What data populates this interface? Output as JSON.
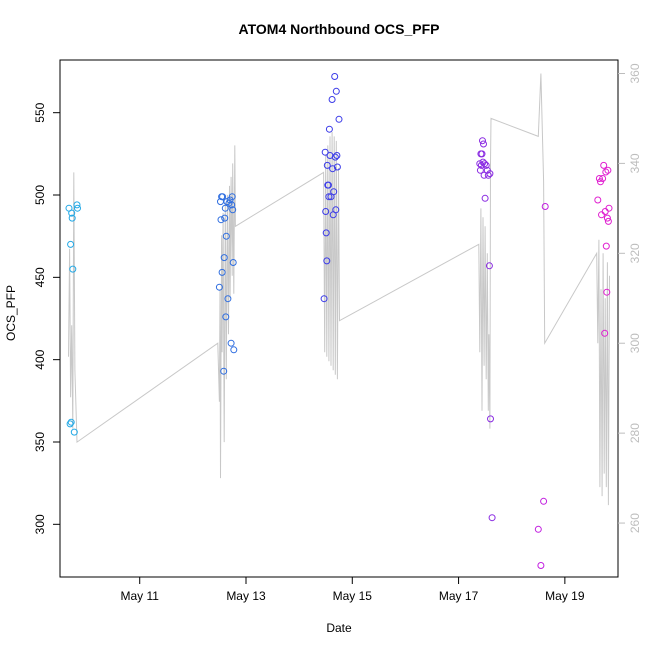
{
  "chart_data": {
    "type": "scatter",
    "title": "ATOM4 Northbound OCS_PFP",
    "xlabel": "Date",
    "ylabel": "OCS_PFP",
    "x_ticks": [
      "May 11",
      "May 13",
      "May 15",
      "May 17",
      "May 19"
    ],
    "x_tick_pos": [
      11,
      13,
      15,
      17,
      19
    ],
    "xlim": [
      9.5,
      20.0
    ],
    "ylim": [
      268,
      582
    ],
    "y_ticks": [
      300,
      350,
      400,
      450,
      500,
      550
    ],
    "y2lim": [
      248,
      363
    ],
    "y2_ticks": [
      260,
      280,
      300,
      320,
      340,
      360
    ],
    "colors": {
      "line": "#c8c8c8",
      "right_axis": "#bdbdbd"
    },
    "points": [
      {
        "x": 9.67,
        "y": 492,
        "c": "#23a9e6"
      },
      {
        "x": 9.7,
        "y": 470,
        "c": "#23a9e6"
      },
      {
        "x": 9.72,
        "y": 489,
        "c": "#23a9e6"
      },
      {
        "x": 9.73,
        "y": 486,
        "c": "#23a9e6"
      },
      {
        "x": 9.74,
        "y": 455,
        "c": "#23a9e6"
      },
      {
        "x": 9.69,
        "y": 361,
        "c": "#23a9e6"
      },
      {
        "x": 9.71,
        "y": 362,
        "c": "#23a9e6"
      },
      {
        "x": 9.77,
        "y": 356,
        "c": "#23a9e6"
      },
      {
        "x": 9.82,
        "y": 494,
        "c": "#23a9e6"
      },
      {
        "x": 9.83,
        "y": 492,
        "c": "#23a9e6"
      },
      {
        "x": 12.5,
        "y": 444,
        "c": "#2f6ee0"
      },
      {
        "x": 12.52,
        "y": 496,
        "c": "#2f6ee0"
      },
      {
        "x": 12.53,
        "y": 485,
        "c": "#2f6ee0"
      },
      {
        "x": 12.54,
        "y": 499,
        "c": "#2f6ee0"
      },
      {
        "x": 12.55,
        "y": 453,
        "c": "#2f6ee0"
      },
      {
        "x": 12.56,
        "y": 499,
        "c": "#2f6ee0"
      },
      {
        "x": 12.58,
        "y": 393,
        "c": "#2f6ee0"
      },
      {
        "x": 12.59,
        "y": 462,
        "c": "#2f6ee0"
      },
      {
        "x": 12.6,
        "y": 486,
        "c": "#2f6ee0"
      },
      {
        "x": 12.61,
        "y": 492,
        "c": "#2f6ee0"
      },
      {
        "x": 12.62,
        "y": 426,
        "c": "#2f6ee0"
      },
      {
        "x": 12.63,
        "y": 475,
        "c": "#2f6ee0"
      },
      {
        "x": 12.64,
        "y": 496,
        "c": "#2f6ee0"
      },
      {
        "x": 12.66,
        "y": 437,
        "c": "#2f6ee0"
      },
      {
        "x": 12.68,
        "y": 495,
        "c": "#2f6ee0"
      },
      {
        "x": 12.7,
        "y": 497,
        "c": "#2f6ee0"
      },
      {
        "x": 12.72,
        "y": 410,
        "c": "#2f6ee0"
      },
      {
        "x": 12.73,
        "y": 494,
        "c": "#2f6ee0"
      },
      {
        "x": 12.74,
        "y": 499,
        "c": "#2f6ee0"
      },
      {
        "x": 12.75,
        "y": 491,
        "c": "#2f6ee0"
      },
      {
        "x": 12.76,
        "y": 459,
        "c": "#2f6ee0"
      },
      {
        "x": 12.77,
        "y": 406,
        "c": "#2f6ee0"
      },
      {
        "x": 14.47,
        "y": 437,
        "c": "#3b3be8"
      },
      {
        "x": 14.49,
        "y": 526,
        "c": "#3b3be8"
      },
      {
        "x": 14.5,
        "y": 490,
        "c": "#3b3be8"
      },
      {
        "x": 14.51,
        "y": 477,
        "c": "#3b3be8"
      },
      {
        "x": 14.52,
        "y": 460,
        "c": "#3b3be8"
      },
      {
        "x": 14.53,
        "y": 518,
        "c": "#3b3be8"
      },
      {
        "x": 14.54,
        "y": 506,
        "c": "#3b3be8"
      },
      {
        "x": 14.55,
        "y": 506,
        "c": "#3b3be8"
      },
      {
        "x": 14.56,
        "y": 499,
        "c": "#3b3be8"
      },
      {
        "x": 14.57,
        "y": 540,
        "c": "#3b3be8"
      },
      {
        "x": 14.58,
        "y": 524,
        "c": "#3b3be8"
      },
      {
        "x": 14.6,
        "y": 499,
        "c": "#3b3be8"
      },
      {
        "x": 14.62,
        "y": 558,
        "c": "#3b3be8"
      },
      {
        "x": 14.63,
        "y": 516,
        "c": "#3b3be8"
      },
      {
        "x": 14.64,
        "y": 488,
        "c": "#3b3be8"
      },
      {
        "x": 14.65,
        "y": 502,
        "c": "#3b3be8"
      },
      {
        "x": 14.67,
        "y": 572,
        "c": "#3b3be8"
      },
      {
        "x": 14.68,
        "y": 523,
        "c": "#3b3be8"
      },
      {
        "x": 14.69,
        "y": 491,
        "c": "#3b3be8"
      },
      {
        "x": 14.7,
        "y": 563,
        "c": "#3b3be8"
      },
      {
        "x": 14.71,
        "y": 524,
        "c": "#3b3be8"
      },
      {
        "x": 14.72,
        "y": 517,
        "c": "#3b3be8"
      },
      {
        "x": 14.75,
        "y": 546,
        "c": "#3b3be8"
      },
      {
        "x": 17.4,
        "y": 519,
        "c": "#8a2be2"
      },
      {
        "x": 17.41,
        "y": 515,
        "c": "#8a2be2"
      },
      {
        "x": 17.42,
        "y": 525,
        "c": "#8a2be2"
      },
      {
        "x": 17.43,
        "y": 518,
        "c": "#8a2be2"
      },
      {
        "x": 17.44,
        "y": 525,
        "c": "#8a2be2"
      },
      {
        "x": 17.45,
        "y": 533,
        "c": "#8a2be2"
      },
      {
        "x": 17.46,
        "y": 520,
        "c": "#8a2be2"
      },
      {
        "x": 17.47,
        "y": 531,
        "c": "#8a2be2"
      },
      {
        "x": 17.48,
        "y": 512,
        "c": "#8a2be2"
      },
      {
        "x": 17.49,
        "y": 519,
        "c": "#8a2be2"
      },
      {
        "x": 17.5,
        "y": 498,
        "c": "#8a2be2"
      },
      {
        "x": 17.52,
        "y": 518,
        "c": "#8a2be2"
      },
      {
        "x": 17.54,
        "y": 515,
        "c": "#8a2be2"
      },
      {
        "x": 17.56,
        "y": 512,
        "c": "#8a2be2"
      },
      {
        "x": 17.58,
        "y": 457,
        "c": "#8a2be2"
      },
      {
        "x": 17.59,
        "y": 513,
        "c": "#8a2be2"
      },
      {
        "x": 17.6,
        "y": 364,
        "c": "#8a2be2"
      },
      {
        "x": 17.63,
        "y": 304,
        "c": "#8a2be2"
      },
      {
        "x": 18.5,
        "y": 297,
        "c": "#c21fe0"
      },
      {
        "x": 18.55,
        "y": 275,
        "c": "#c21fe0"
      },
      {
        "x": 18.6,
        "y": 314,
        "c": "#c21fe0"
      },
      {
        "x": 18.63,
        "y": 493,
        "c": "#c21fe0"
      },
      {
        "x": 19.62,
        "y": 497,
        "c": "#e020d0"
      },
      {
        "x": 19.65,
        "y": 510,
        "c": "#e020d0"
      },
      {
        "x": 19.67,
        "y": 508,
        "c": "#e020d0"
      },
      {
        "x": 19.69,
        "y": 488,
        "c": "#e020d0"
      },
      {
        "x": 19.71,
        "y": 510,
        "c": "#e020d0"
      },
      {
        "x": 19.73,
        "y": 518,
        "c": "#e020d0"
      },
      {
        "x": 19.75,
        "y": 416,
        "c": "#e020d0"
      },
      {
        "x": 19.76,
        "y": 490,
        "c": "#e020d0"
      },
      {
        "x": 19.77,
        "y": 514,
        "c": "#e020d0"
      },
      {
        "x": 19.78,
        "y": 469,
        "c": "#e020d0"
      },
      {
        "x": 19.79,
        "y": 441,
        "c": "#e020d0"
      },
      {
        "x": 19.8,
        "y": 486,
        "c": "#e020d0"
      },
      {
        "x": 19.81,
        "y": 515,
        "c": "#e020d0"
      },
      {
        "x": 19.82,
        "y": 484,
        "c": "#e020d0"
      },
      {
        "x": 19.83,
        "y": 492,
        "c": "#e020d0"
      }
    ],
    "line": [
      [
        9.66,
        297
      ],
      [
        9.68,
        321
      ],
      [
        9.7,
        288
      ],
      [
        9.72,
        304
      ],
      [
        9.74,
        281
      ],
      [
        9.76,
        338
      ],
      [
        9.78,
        294
      ],
      [
        9.82,
        278
      ],
      [
        12.47,
        300
      ],
      [
        12.5,
        287
      ],
      [
        12.51,
        312
      ],
      [
        12.52,
        270
      ],
      [
        12.54,
        324
      ],
      [
        12.55,
        298
      ],
      [
        12.57,
        329
      ],
      [
        12.59,
        278
      ],
      [
        12.61,
        331
      ],
      [
        12.63,
        292
      ],
      [
        12.65,
        333
      ],
      [
        12.67,
        302
      ],
      [
        12.69,
        335
      ],
      [
        12.7,
        310
      ],
      [
        12.72,
        337
      ],
      [
        12.74,
        315
      ],
      [
        12.75,
        340
      ],
      [
        12.77,
        311
      ],
      [
        12.79,
        344
      ],
      [
        12.8,
        326
      ],
      [
        14.46,
        338
      ],
      [
        14.48,
        298
      ],
      [
        14.5,
        342
      ],
      [
        14.52,
        297
      ],
      [
        14.54,
        344
      ],
      [
        14.56,
        296
      ],
      [
        14.58,
        346
      ],
      [
        14.6,
        295
      ],
      [
        14.62,
        347
      ],
      [
        14.64,
        294
      ],
      [
        14.66,
        346
      ],
      [
        14.68,
        293
      ],
      [
        14.7,
        345
      ],
      [
        14.72,
        292
      ],
      [
        14.74,
        339
      ],
      [
        14.76,
        305
      ],
      [
        17.38,
        322
      ],
      [
        17.4,
        298
      ],
      [
        17.42,
        330
      ],
      [
        17.44,
        285
      ],
      [
        17.46,
        328
      ],
      [
        17.48,
        295
      ],
      [
        17.5,
        326
      ],
      [
        17.52,
        292
      ],
      [
        17.54,
        320
      ],
      [
        17.56,
        285
      ],
      [
        17.57,
        302
      ],
      [
        17.59,
        281
      ],
      [
        17.6,
        340
      ],
      [
        17.61,
        350
      ],
      [
        18.5,
        346
      ],
      [
        18.55,
        360
      ],
      [
        18.6,
        336
      ],
      [
        18.62,
        300
      ],
      [
        19.6,
        320
      ],
      [
        19.62,
        300
      ],
      [
        19.64,
        323
      ],
      [
        19.66,
        268
      ],
      [
        19.68,
        312
      ],
      [
        19.7,
        266
      ],
      [
        19.72,
        320
      ],
      [
        19.74,
        271
      ],
      [
        19.76,
        310
      ],
      [
        19.78,
        268
      ],
      [
        19.8,
        318
      ],
      [
        19.82,
        264
      ],
      [
        19.84,
        315
      ]
    ]
  }
}
